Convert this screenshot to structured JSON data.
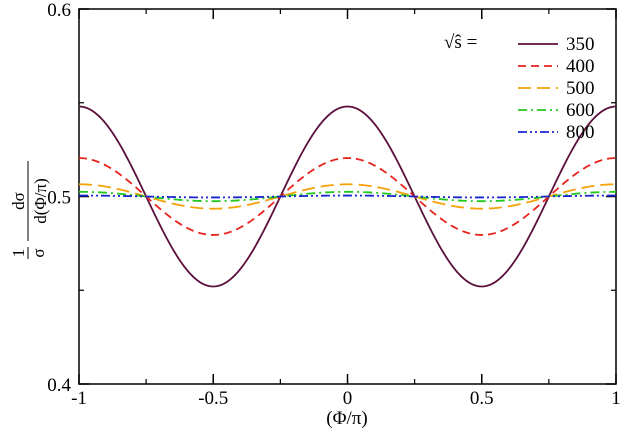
{
  "chart_data": {
    "type": "line",
    "title": "",
    "xlabel": "(Φ/π)",
    "ylabel": {
      "prefactor_num": "1",
      "prefactor_den": "σ",
      "deriv_num": "dσ",
      "deriv_den": "d(Φ/π)"
    },
    "xlim": [
      -1,
      1
    ],
    "ylim": [
      0.4,
      0.6
    ],
    "xticks": [
      -1,
      -0.5,
      0,
      0.5,
      1
    ],
    "xtick_labels": [
      "-1",
      "-0.5",
      "0",
      "0.5",
      "1"
    ],
    "yticks": [
      0.4,
      0.5,
      0.6
    ],
    "ytick_labels": [
      "0.4",
      "0.5",
      "0.6"
    ],
    "legend": {
      "title": "√ŝ =",
      "position": "top-right"
    },
    "series": [
      {
        "name": "350",
        "color": "#5b0f3c",
        "dash": "solid",
        "amplitude": 0.048
      },
      {
        "name": "400",
        "color": "#e8221c",
        "dash": "dashed",
        "amplitude": 0.0205
      },
      {
        "name": "500",
        "color": "#f5a20a",
        "dash": "longdash",
        "amplitude": 0.0065
      },
      {
        "name": "600",
        "color": "#22c81e",
        "dash": "dashdot",
        "amplitude": 0.0025
      },
      {
        "name": "800",
        "color": "#1a25d0",
        "dash": "dashdotdot",
        "amplitude": 0.0005
      }
    ],
    "model": "y = 0.5 + amplitude * cos(2*pi*x)"
  }
}
